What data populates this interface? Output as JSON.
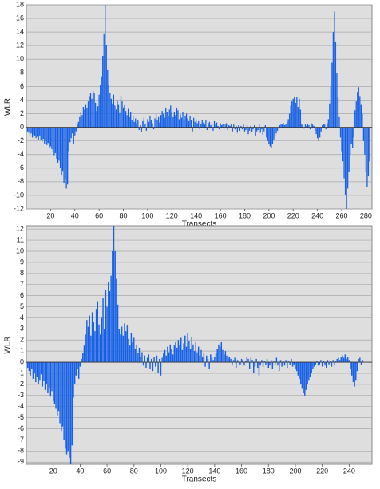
{
  "chart_data": [
    {
      "type": "bar",
      "ylabel": "WLR",
      "xlabel": "Transects",
      "color": "#1560e6",
      "grid": true,
      "xlim": [
        0,
        285
      ],
      "ylim": [
        -12,
        18
      ],
      "xticks": [
        20,
        40,
        60,
        80,
        100,
        120,
        140,
        160,
        180,
        200,
        220,
        240,
        260,
        280
      ],
      "yticks": [
        -12,
        -10,
        -8,
        -6,
        -4,
        -2,
        0,
        2,
        4,
        6,
        8,
        10,
        12,
        14,
        16,
        18
      ],
      "x": [
        1,
        2,
        3,
        4,
        5,
        6,
        7,
        8,
        9,
        10,
        11,
        12,
        13,
        14,
        15,
        16,
        17,
        18,
        19,
        20,
        21,
        22,
        23,
        24,
        25,
        26,
        27,
        28,
        29,
        30,
        31,
        32,
        33,
        34,
        35,
        36,
        37,
        38,
        39,
        40,
        41,
        42,
        43,
        44,
        45,
        46,
        47,
        48,
        49,
        50,
        51,
        52,
        53,
        54,
        55,
        56,
        57,
        58,
        59,
        60,
        61,
        62,
        63,
        64,
        65,
        66,
        67,
        68,
        69,
        70,
        71,
        72,
        73,
        74,
        75,
        76,
        77,
        78,
        79,
        80,
        81,
        82,
        83,
        84,
        85,
        86,
        87,
        88,
        89,
        90,
        91,
        92,
        93,
        94,
        95,
        96,
        97,
        98,
        99,
        100,
        101,
        102,
        103,
        104,
        105,
        106,
        107,
        108,
        109,
        110,
        111,
        112,
        113,
        114,
        115,
        116,
        117,
        118,
        119,
        120,
        121,
        122,
        123,
        124,
        125,
        126,
        127,
        128,
        129,
        130,
        131,
        132,
        133,
        134,
        135,
        136,
        137,
        138,
        139,
        140,
        141,
        142,
        143,
        144,
        145,
        146,
        147,
        148,
        149,
        150,
        151,
        152,
        153,
        154,
        155,
        156,
        157,
        158,
        159,
        160,
        161,
        162,
        163,
        164,
        165,
        166,
        167,
        168,
        169,
        170,
        171,
        172,
        173,
        174,
        175,
        176,
        177,
        178,
        179,
        180,
        181,
        182,
        183,
        184,
        185,
        186,
        187,
        188,
        189,
        190,
        191,
        192,
        193,
        194,
        195,
        196,
        197,
        198,
        199,
        200,
        201,
        202,
        203,
        204,
        205,
        206,
        207,
        208,
        209,
        210,
        211,
        212,
        213,
        214,
        215,
        216,
        217,
        218,
        219,
        220,
        221,
        222,
        223,
        224,
        225,
        226,
        227,
        228,
        229,
        230,
        231,
        232,
        233,
        234,
        235,
        236,
        237,
        238,
        239,
        240,
        241,
        242,
        243,
        244,
        245,
        246,
        247,
        248,
        249,
        250,
        251,
        252,
        253,
        254,
        255,
        256,
        257,
        258,
        259,
        260,
        261,
        262,
        263,
        264,
        265,
        266,
        267,
        268,
        269,
        270,
        271,
        272,
        273,
        274,
        275,
        276,
        277,
        278,
        279,
        280,
        281,
        282,
        283
      ],
      "values": [
        -0.6,
        -0.8,
        -1.2,
        -0.9,
        -1.5,
        -1.1,
        -1.3,
        -1.6,
        -1.4,
        -1.8,
        -1.2,
        -1.9,
        -2.1,
        -1.7,
        -2.4,
        -2.0,
        -2.6,
        -2.3,
        -3.0,
        -2.8,
        -3.2,
        -3.6,
        -4.1,
        -3.8,
        -4.6,
        -5.2,
        -4.9,
        -6.0,
        -7.1,
        -6.4,
        -8.2,
        -7.6,
        -9.0,
        -8.4,
        -3.5,
        -2.2,
        -1.6,
        -0.9,
        -2.4,
        -1.2,
        -0.6,
        0.4,
        0.8,
        1.5,
        2.2,
        1.8,
        3.0,
        2.6,
        3.4,
        2.9,
        3.8,
        4.6,
        5.0,
        4.2,
        5.4,
        5.1,
        3.6,
        2.4,
        3.1,
        4.8,
        6.2,
        7.5,
        10.5,
        13.8,
        18.0,
        12.1,
        8.4,
        6.3,
        5.1,
        4.2,
        3.5,
        4.8,
        3.2,
        2.6,
        4.0,
        3.4,
        2.1,
        4.6,
        3.8,
        2.9,
        3.3,
        2.4,
        1.8,
        2.7,
        1.5,
        2.2,
        1.1,
        1.6,
        0.8,
        1.3,
        0.6,
        1.0,
        -0.4,
        0.3,
        -0.7,
        0.9,
        1.4,
        0.5,
        -0.5,
        1.2,
        0.8,
        1.6,
        1.1,
        0.6,
        -0.3,
        1.3,
        1.9,
        1.0,
        1.5,
        0.7,
        1.8,
        2.4,
        2.0,
        1.4,
        2.8,
        2.2,
        1.6,
        2.6,
        3.2,
        2.1,
        1.5,
        2.3,
        1.8,
        2.9,
        2.5,
        1.2,
        1.9,
        1.4,
        2.2,
        1.0,
        1.6,
        2.0,
        1.3,
        0.9,
        1.7,
        1.1,
        -0.6,
        1.4,
        0.8,
        1.2,
        0.6,
        0.9,
        -0.3,
        0.5,
        1.1,
        0.7,
        0.4,
        1.0,
        -0.4,
        0.6,
        0.8,
        0.3,
        0.5,
        -0.5,
        0.9,
        0.4,
        0.7,
        0.2,
        -0.3,
        0.6,
        0.3,
        0.5,
        -0.2,
        0.4,
        0.6,
        -0.4,
        0.3,
        0.2,
        0.5,
        -0.6,
        0.4,
        -0.3,
        0.2,
        -0.8,
        0.3,
        -0.5,
        0.2,
        -0.3,
        0.4,
        -0.6,
        -0.4,
        0.3,
        -1.0,
        -0.5,
        0.2,
        -0.7,
        -0.3,
        0.3,
        -1.2,
        -0.6,
        -0.4,
        0.5,
        -0.8,
        -0.3,
        -1.1,
        -0.6,
        0.3,
        -1.5,
        -2.0,
        -2.4,
        -2.8,
        -3.0,
        -2.5,
        -1.8,
        -1.4,
        -0.9,
        -0.5,
        -0.2,
        0.3,
        0.5,
        0.4,
        0.6,
        0.3,
        0.5,
        0.8,
        1.2,
        2.0,
        3.2,
        3.8,
        4.2,
        4.5,
        3.6,
        4.4,
        3.0,
        4.2,
        2.6,
        0.5,
        0.3,
        -0.2,
        0.4,
        0.2,
        0.5,
        0.3,
        -0.3,
        0.6,
        0.4,
        0.2,
        -0.5,
        -1.0,
        -1.6,
        -2.0,
        -1.5,
        -0.6,
        0.3,
        0.5,
        0.4,
        -0.3,
        0.6,
        1.2,
        3.5,
        6.0,
        9.5,
        14.0,
        17.0,
        12.5,
        8.0,
        4.5,
        1.5,
        -1.5,
        -3.5,
        -5.0,
        -7.5,
        -10.0,
        -12.0,
        -9.0,
        -6.5,
        -4.0,
        -2.5,
        -3.0,
        -1.5,
        2.5,
        3.8,
        5.2,
        5.9,
        4.6,
        3.4,
        2.0,
        -2.0,
        -4.0,
        -6.5,
        -8.8,
        -7.2,
        -5.0
      ]
    },
    {
      "type": "bar",
      "ylabel": "WLR",
      "xlabel": "Transects",
      "color": "#1560e6",
      "grid": true,
      "xlim": [
        0,
        257
      ],
      "ylim": [
        -9.2,
        12.3
      ],
      "xticks": [
        20,
        40,
        60,
        80,
        100,
        120,
        140,
        160,
        180,
        200,
        220,
        240
      ],
      "yticks": [
        -9,
        -8,
        -7,
        -6,
        -5,
        -4,
        -3,
        -2,
        -1,
        0,
        1,
        2,
        3,
        4,
        5,
        6,
        7,
        8,
        9,
        10,
        11,
        12
      ],
      "x": [
        1,
        2,
        3,
        4,
        5,
        6,
        7,
        8,
        9,
        10,
        11,
        12,
        13,
        14,
        15,
        16,
        17,
        18,
        19,
        20,
        21,
        22,
        23,
        24,
        25,
        26,
        27,
        28,
        29,
        30,
        31,
        32,
        33,
        34,
        35,
        36,
        37,
        38,
        39,
        40,
        41,
        42,
        43,
        44,
        45,
        46,
        47,
        48,
        49,
        50,
        51,
        52,
        53,
        54,
        55,
        56,
        57,
        58,
        59,
        60,
        61,
        62,
        63,
        64,
        65,
        66,
        67,
        68,
        69,
        70,
        71,
        72,
        73,
        74,
        75,
        76,
        77,
        78,
        79,
        80,
        81,
        82,
        83,
        84,
        85,
        86,
        87,
        88,
        89,
        90,
        91,
        92,
        93,
        94,
        95,
        96,
        97,
        98,
        99,
        100,
        101,
        102,
        103,
        104,
        105,
        106,
        107,
        108,
        109,
        110,
        111,
        112,
        113,
        114,
        115,
        116,
        117,
        118,
        119,
        120,
        121,
        122,
        123,
        124,
        125,
        126,
        127,
        128,
        129,
        130,
        131,
        132,
        133,
        134,
        135,
        136,
        137,
        138,
        139,
        140,
        141,
        142,
        143,
        144,
        145,
        146,
        147,
        148,
        149,
        150,
        151,
        152,
        153,
        154,
        155,
        156,
        157,
        158,
        159,
        160,
        161,
        162,
        163,
        164,
        165,
        166,
        167,
        168,
        169,
        170,
        171,
        172,
        173,
        174,
        175,
        176,
        177,
        178,
        179,
        180,
        181,
        182,
        183,
        184,
        185,
        186,
        187,
        188,
        189,
        190,
        191,
        192,
        193,
        194,
        195,
        196,
        197,
        198,
        199,
        200,
        201,
        202,
        203,
        204,
        205,
        206,
        207,
        208,
        209,
        210,
        211,
        212,
        213,
        214,
        215,
        216,
        217,
        218,
        219,
        220,
        221,
        222,
        223,
        224,
        225,
        226,
        227,
        228,
        229,
        230,
        231,
        232,
        233,
        234,
        235,
        236,
        237,
        238,
        239,
        240,
        241,
        242,
        243,
        244,
        245,
        246,
        247,
        248,
        249,
        250
      ],
      "values": [
        -0.5,
        -0.8,
        -1.2,
        -0.6,
        -1.5,
        -1.0,
        -1.8,
        -1.3,
        -2.0,
        -1.6,
        -1.1,
        -2.2,
        -1.7,
        -2.5,
        -2.0,
        -2.8,
        -2.3,
        -3.1,
        -2.6,
        -3.5,
        -3.8,
        -4.2,
        -4.8,
        -4.4,
        -5.5,
        -6.2,
        -5.8,
        -7.0,
        -7.8,
        -8.3,
        -8.0,
        -8.6,
        -9.2,
        -7.5,
        -3.2,
        -2.0,
        -1.2,
        -0.6,
        -1.5,
        -0.4,
        0.3,
        0.8,
        1.5,
        2.5,
        3.8,
        3.2,
        4.2,
        2.4,
        4.5,
        3.6,
        2.8,
        4.8,
        5.5,
        3.4,
        2.5,
        4.0,
        5.8,
        3.0,
        6.5,
        5.0,
        7.2,
        6.4,
        7.8,
        10.0,
        12.3,
        10.0,
        7.5,
        5.2,
        3.0,
        2.5,
        3.2,
        2.4,
        3.5,
        2.8,
        3.3,
        2.1,
        1.5,
        2.6,
        1.8,
        2.2,
        1.2,
        1.6,
        0.8,
        1.3,
        0.5,
        0.9,
        -0.3,
        0.6,
        -0.5,
        0.4,
        0.7,
        -0.6,
        0.3,
        -0.8,
        0.5,
        -0.4,
        0.6,
        -1.0,
        0.3,
        -1.2,
        0.4,
        0.8,
        1.1,
        0.6,
        1.4,
        0.9,
        1.6,
        1.2,
        0.7,
        1.5,
        1.8,
        1.3,
        2.0,
        1.5,
        2.2,
        1.1,
        1.7,
        2.4,
        1.4,
        2.6,
        1.9,
        1.2,
        2.3,
        1.6,
        1.0,
        1.8,
        0.9,
        1.4,
        0.6,
        1.1,
        0.5,
        0.8,
        -0.4,
        0.6,
        0.3,
        -0.6,
        0.7,
        0.4,
        0.2,
        0.5,
        0.8,
        1.2,
        1.6,
        1.4,
        1.8,
        1.1,
        0.7,
        1.0,
        0.6,
        0.4,
        0.5,
        0.3,
        -0.3,
        0.2,
        0.4,
        -0.5,
        0.2,
        0.1,
        -0.2,
        0.3,
        0.2,
        -0.3,
        0.1,
        0.5,
        0.3,
        -0.6,
        0.4,
        0.2,
        -1.0,
        -0.4,
        0.3,
        -0.5,
        -1.2,
        -0.3,
        0.2,
        -0.4,
        0.1,
        -0.2,
        0.3,
        -0.5,
        -0.3,
        0.2,
        -0.6,
        0.1,
        -0.2,
        0.4,
        -0.3,
        -0.8,
        0.2,
        -0.4,
        0.1,
        -0.3,
        0.2,
        -0.5,
        0.1,
        -0.2,
        0.3,
        -0.4,
        -0.2,
        -0.6,
        -0.8,
        -1.2,
        -1.5,
        -2.0,
        -2.4,
        -2.8,
        -3.0,
        -2.5,
        -2.0,
        -1.6,
        -1.3,
        -1.0,
        -0.6,
        -0.4,
        -0.2,
        0.1,
        -0.3,
        -0.2,
        0.2,
        -0.4,
        0.1,
        -0.3,
        -0.5,
        0.2,
        -0.2,
        0.1,
        -0.4,
        0.2,
        -0.3,
        0.1,
        0.3,
        0.4,
        0.2,
        0.5,
        0.6,
        0.4,
        0.7,
        0.3,
        0.5,
        0.2,
        -0.6,
        -1.2,
        -1.8,
        -2.2,
        -1.6,
        -0.8,
        0.3,
        0.4,
        -0.2,
        0.2
      ]
    }
  ]
}
